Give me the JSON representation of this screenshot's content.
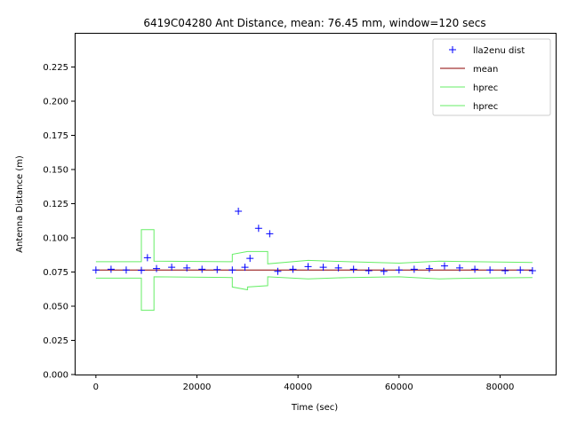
{
  "chart_data": {
    "type": "scatter",
    "title": "6419C04280 Ant Distance, mean: 76.45 mm, window=120 secs",
    "xlabel": "Time (sec)",
    "ylabel": "Antenna Distance (m)",
    "xlim": [
      -4200,
      91000
    ],
    "ylim": [
      0.0,
      0.25
    ],
    "xticks": [
      0,
      20000,
      40000,
      60000,
      80000
    ],
    "yticks": [
      0.0,
      0.025,
      0.05,
      0.075,
      0.1,
      0.125,
      0.15,
      0.175,
      0.2,
      0.225
    ],
    "xtick_labels": [
      "0",
      "20000",
      "40000",
      "60000",
      "80000"
    ],
    "ytick_labels": [
      "0.000",
      "0.025",
      "0.050",
      "0.075",
      "0.100",
      "0.125",
      "0.150",
      "0.175",
      "0.200",
      "0.225"
    ],
    "grid": false,
    "legend_position": "top-right",
    "colors": {
      "dist": "#0000ff",
      "mean": "#8b0000",
      "hprec": "#66ee66"
    },
    "series": [
      {
        "name": "lla2enu dist",
        "style": "plus-markers",
        "x": [
          0,
          3000,
          6000,
          9000,
          10200,
          12000,
          15000,
          18000,
          21000,
          24000,
          27000,
          28200,
          29500,
          30500,
          32200,
          34400,
          36000,
          39000,
          42000,
          45000,
          48000,
          51000,
          54000,
          57000,
          60000,
          63000,
          66000,
          69000,
          72000,
          75000,
          78000,
          81000,
          84000,
          86400
        ],
        "y": [
          0.0765,
          0.077,
          0.0765,
          0.0762,
          0.0855,
          0.0775,
          0.0785,
          0.078,
          0.077,
          0.0768,
          0.0765,
          0.1195,
          0.0785,
          0.085,
          0.107,
          0.103,
          0.0755,
          0.077,
          0.079,
          0.0785,
          0.078,
          0.077,
          0.076,
          0.0755,
          0.0765,
          0.077,
          0.0775,
          0.0795,
          0.078,
          0.077,
          0.0765,
          0.076,
          0.0765,
          0.076
        ]
      },
      {
        "name": "mean",
        "style": "line",
        "x": [
          0,
          86400
        ],
        "y": [
          0.07645,
          0.07645
        ]
      },
      {
        "name": "hprec",
        "style": "line",
        "x": [
          0,
          9000,
          9000,
          11500,
          11500,
          27000,
          27000,
          30000,
          30000,
          34000,
          34000,
          42000,
          50000,
          60000,
          68000,
          75000,
          86400
        ],
        "y": [
          0.0825,
          0.0825,
          0.106,
          0.106,
          0.083,
          0.0825,
          0.088,
          0.09,
          0.09,
          0.09,
          0.081,
          0.0835,
          0.0825,
          0.0815,
          0.083,
          0.0825,
          0.082
        ]
      },
      {
        "name": "hprec",
        "style": "line",
        "x": [
          0,
          9000,
          9000,
          11500,
          11500,
          27000,
          27000,
          30000,
          30000,
          34000,
          34000,
          42000,
          50000,
          60000,
          68000,
          75000,
          86400
        ],
        "y": [
          0.0705,
          0.0705,
          0.047,
          0.047,
          0.0715,
          0.071,
          0.064,
          0.062,
          0.064,
          0.065,
          0.0715,
          0.07,
          0.071,
          0.0715,
          0.07,
          0.0705,
          0.071
        ]
      }
    ]
  }
}
